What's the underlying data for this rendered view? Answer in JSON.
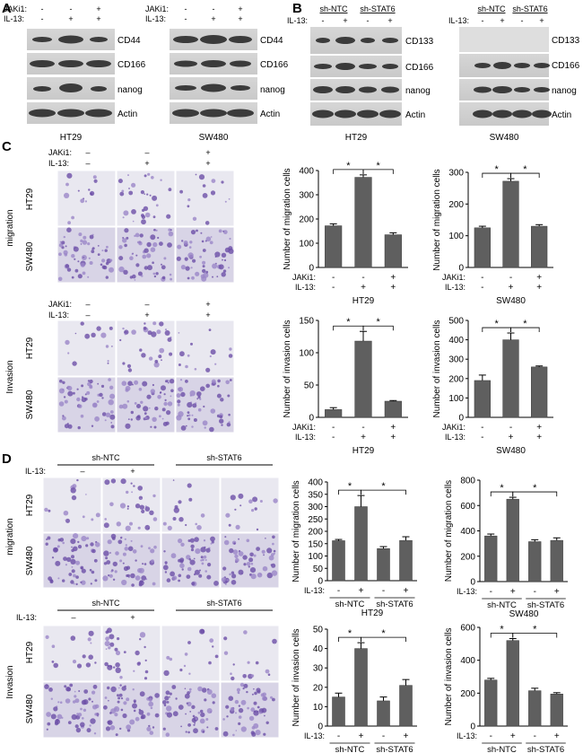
{
  "figure": {
    "panel_labels": [
      "A",
      "B",
      "C",
      "D"
    ],
    "common": {
      "jaki1_label": "JAKi1:",
      "il13_label": "IL-13:",
      "minus": "-",
      "plus": "+",
      "dash": "–",
      "star": "*",
      "actin": "Actin",
      "cd44": "CD44",
      "cd166": "CD166",
      "cd133": "CD133",
      "nanog": "nanog",
      "ht29": "HT29",
      "sw480": "SW480",
      "migration": "migration",
      "invasion": "Invasion",
      "sh_ntc": "sh-NTC",
      "sh_stat6": "sh-STAT6"
    },
    "panel_a": {
      "blots": [
        {
          "cell_line": "HT29",
          "proteins": [
            "CD44",
            "CD166",
            "nanog",
            "Actin"
          ],
          "jaki1": [
            "-",
            "-",
            "+"
          ],
          "il13": [
            "-",
            "+",
            "+"
          ]
        },
        {
          "cell_line": "SW480",
          "proteins": [
            "CD44",
            "CD166",
            "nanog",
            "Actin"
          ],
          "jaki1": [
            "-",
            "-",
            "+"
          ],
          "il13": [
            "-",
            "+",
            "+"
          ]
        }
      ]
    },
    "panel_b": {
      "blots": [
        {
          "cell_line": "HT29",
          "proteins": [
            "CD133",
            "CD166",
            "nanog",
            "Actin"
          ],
          "groups": [
            "sh-NTC",
            "sh-STAT6"
          ],
          "il13": [
            "-",
            "+",
            "-",
            "+"
          ]
        },
        {
          "cell_line": "SW480",
          "proteins": [
            "CD133",
            "CD166",
            "nanog",
            "Actin"
          ],
          "groups": [
            "sh-NTC",
            "sh-STAT6"
          ],
          "il13": [
            "-",
            "+",
            "-",
            "+"
          ]
        }
      ]
    },
    "panel_c": {
      "micrograph_rows": [
        "HT29",
        "SW480"
      ],
      "sections": [
        "migration",
        "Invasion"
      ]
    },
    "panel_d": {
      "micrograph_rows": [
        "HT29",
        "SW480"
      ],
      "sections": [
        "migration",
        "Invasion"
      ]
    }
  },
  "chart_data": [
    {
      "type": "bar",
      "panel": "C",
      "title": "HT29",
      "ylabel": "Number of migration cells",
      "categories": [
        "-/-",
        "-/+",
        "+/+"
      ],
      "conditions": {
        "JAKi1": [
          "-",
          "-",
          "+"
        ],
        "IL-13": [
          "-",
          "+",
          "+"
        ]
      },
      "values": [
        172,
        372,
        135
      ],
      "errors": [
        8,
        10,
        8
      ],
      "ylim": [
        0,
        400
      ],
      "yticks": [
        0,
        100,
        200,
        300,
        400
      ],
      "significance": [
        [
          0,
          1
        ],
        [
          1,
          2
        ]
      ]
    },
    {
      "type": "bar",
      "panel": "C",
      "title": "SW480",
      "ylabel": "Number of migration cells",
      "categories": [
        "-/-",
        "-/+",
        "+/+"
      ],
      "conditions": {
        "JAKi1": [
          "-",
          "-",
          "+"
        ],
        "IL-13": [
          "-",
          "+",
          "+"
        ]
      },
      "values": [
        125,
        272,
        130
      ],
      "errors": [
        5,
        8,
        5
      ],
      "ylim": [
        0,
        300
      ],
      "yticks": [
        0,
        100,
        200,
        300
      ],
      "significance": [
        [
          0,
          1
        ],
        [
          1,
          2
        ]
      ]
    },
    {
      "type": "bar",
      "panel": "C",
      "title": "HT29",
      "ylabel": "Number of invasion cells",
      "categories": [
        "-/-",
        "-/+",
        "+/+"
      ],
      "conditions": {
        "JAKi1": [
          "-",
          "-",
          "+"
        ],
        "IL-13": [
          "-",
          "+",
          "+"
        ]
      },
      "values": [
        12,
        118,
        25
      ],
      "errors": [
        3,
        15,
        1
      ],
      "ylim": [
        0,
        150
      ],
      "yticks": [
        0,
        50,
        100,
        150
      ],
      "significance": [
        [
          0,
          1
        ],
        [
          1,
          2
        ]
      ]
    },
    {
      "type": "bar",
      "panel": "C",
      "title": "SW480",
      "ylabel": "Number of invasion cells",
      "categories": [
        "-/-",
        "-/+",
        "+/+"
      ],
      "conditions": {
        "JAKi1": [
          "-",
          "-",
          "+"
        ],
        "IL-13": [
          "-",
          "+",
          "+"
        ]
      },
      "values": [
        190,
        400,
        260
      ],
      "errors": [
        28,
        35,
        5
      ],
      "ylim": [
        0,
        500
      ],
      "yticks": [
        0,
        100,
        200,
        300,
        400,
        500
      ],
      "significance": [
        [
          0,
          1
        ],
        [
          1,
          2
        ]
      ]
    },
    {
      "type": "bar",
      "panel": "D",
      "title": "HT29",
      "ylabel": "Number of migration cells",
      "categories": [
        "sh-NTC -",
        "sh-NTC +",
        "sh-STAT6 -",
        "sh-STAT6 +"
      ],
      "groups": [
        "sh-NTC",
        "sh-STAT6"
      ],
      "conditions": {
        "IL-13": [
          "-",
          "+",
          "-",
          "+"
        ]
      },
      "values": [
        162,
        300,
        130,
        163
      ],
      "errors": [
        5,
        45,
        8,
        15
      ],
      "ylim": [
        0,
        400
      ],
      "yticks": [
        0,
        50,
        100,
        150,
        200,
        250,
        300,
        350,
        400
      ],
      "significance": [
        [
          0,
          1
        ],
        [
          1,
          3
        ]
      ]
    },
    {
      "type": "bar",
      "panel": "D",
      "title": "SW480",
      "ylabel": "Number of migration cells",
      "categories": [
        "sh-NTC -",
        "sh-NTC +",
        "sh-STAT6 -",
        "sh-STAT6 +"
      ],
      "groups": [
        "sh-NTC",
        "sh-STAT6"
      ],
      "conditions": {
        "IL-13": [
          "-",
          "+",
          "-",
          "+"
        ]
      },
      "values": [
        360,
        650,
        315,
        325
      ],
      "errors": [
        15,
        15,
        15,
        20
      ],
      "ylim": [
        0,
        800
      ],
      "yticks": [
        0,
        200,
        400,
        600,
        800
      ],
      "significance": [
        [
          0,
          1
        ],
        [
          1,
          3
        ]
      ]
    },
    {
      "type": "bar",
      "panel": "D",
      "title": "HT29",
      "ylabel": "Number of invasion cells",
      "categories": [
        "sh-NTC -",
        "sh-NTC +",
        "sh-STAT6 -",
        "sh-STAT6 +"
      ],
      "groups": [
        "sh-NTC",
        "sh-STAT6"
      ],
      "conditions": {
        "IL-13": [
          "-",
          "+",
          "-",
          "+"
        ]
      },
      "values": [
        15,
        40,
        13,
        21
      ],
      "errors": [
        2,
        3,
        2,
        3
      ],
      "ylim": [
        0,
        50
      ],
      "yticks": [
        0,
        10,
        20,
        30,
        40,
        50
      ],
      "significance": [
        [
          0,
          1
        ],
        [
          1,
          3
        ]
      ]
    },
    {
      "type": "bar",
      "panel": "D",
      "title": "SW480",
      "ylabel": "Number of invasion cells",
      "categories": [
        "sh-NTC -",
        "sh-NTC +",
        "sh-STAT6 -",
        "sh-STAT6 +"
      ],
      "groups": [
        "sh-NTC",
        "sh-STAT6"
      ],
      "conditions": {
        "IL-13": [
          "-",
          "+",
          "-",
          "+"
        ]
      },
      "values": [
        280,
        520,
        215,
        195
      ],
      "errors": [
        10,
        12,
        15,
        8
      ],
      "ylim": [
        0,
        600
      ],
      "yticks": [
        0,
        200,
        400,
        600
      ],
      "significance": [
        [
          0,
          1
        ],
        [
          1,
          3
        ]
      ]
    }
  ]
}
